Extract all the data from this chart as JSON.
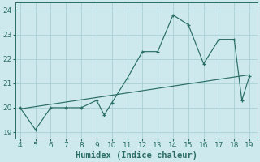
{
  "x": [
    4,
    5,
    6,
    7,
    8,
    9,
    9.5,
    10,
    11,
    12,
    13,
    14,
    15,
    16,
    17,
    18,
    18.5,
    19
  ],
  "y": [
    20.0,
    19.1,
    20.0,
    20.0,
    20.0,
    20.3,
    19.7,
    20.2,
    21.2,
    22.3,
    22.3,
    23.8,
    23.4,
    21.8,
    22.8,
    22.8,
    20.3,
    21.3
  ],
  "trend_x": [
    4,
    19
  ],
  "trend_y": [
    19.95,
    21.35
  ],
  "xlabel": "Humidex (Indice chaleur)",
  "xlim": [
    3.7,
    19.5
  ],
  "ylim": [
    18.75,
    24.3
  ],
  "xticks": [
    4,
    5,
    6,
    7,
    8,
    9,
    10,
    11,
    12,
    13,
    14,
    15,
    16,
    17,
    18,
    19
  ],
  "yticks": [
    19,
    20,
    21,
    22,
    23,
    24
  ],
  "line_color": "#2a6e65",
  "bg_color": "#cde9ed",
  "grid_color": "#a8d0d5",
  "tick_fontsize": 6.5,
  "label_fontsize": 7.5
}
